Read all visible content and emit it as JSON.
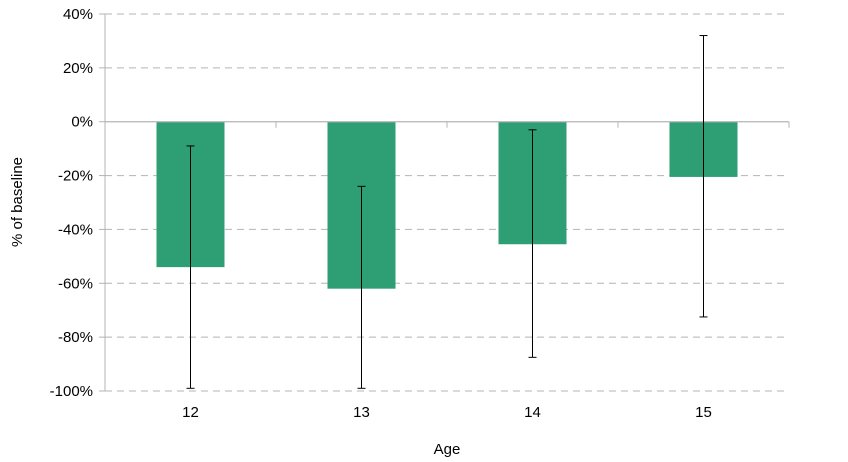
{
  "chart_data": {
    "type": "bar",
    "title": "",
    "xlabel": "Age",
    "ylabel": "% of baseline",
    "categories": [
      "12",
      "13",
      "14",
      "15"
    ],
    "values": [
      -54,
      -62,
      -45.5,
      -20.5
    ],
    "error_low": [
      -99,
      -99,
      -87.5,
      -72.5
    ],
    "error_high": [
      -9,
      -24,
      -3,
      32
    ],
    "ylim": [
      -100,
      40
    ],
    "yticks": [
      40,
      20,
      0,
      -20,
      -40,
      -60,
      -80,
      -100
    ],
    "ytick_labels": [
      "40%",
      "20%",
      "0%",
      "-20%",
      "-40%",
      "-60%",
      "-80%",
      "-100%"
    ],
    "grid": true,
    "grid_style": "dashed",
    "bar_color": "#2e9e74",
    "error_bar_color": "#000000",
    "grid_color": "#b4b4b4",
    "axis_color": "#b4b4b4"
  }
}
